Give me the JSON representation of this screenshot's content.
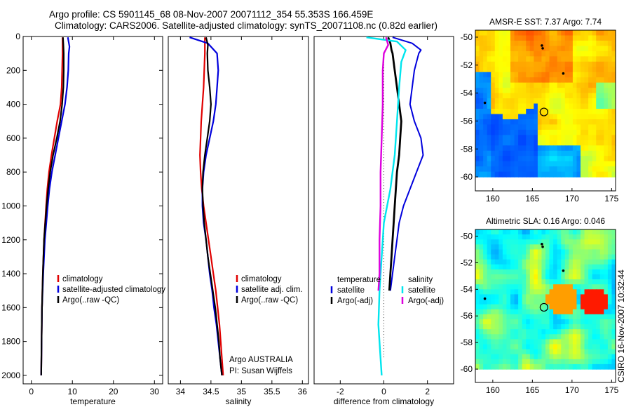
{
  "header": {
    "line1": "Argo profile: CS 5901145_68 08-Nov-2007 20071112_354 55.353S 166.459E",
    "line2": "Climatology: CARS2006. Satellite-adjusted climatology: synTS_20071108.nc (0.82d earlier)"
  },
  "colors": {
    "climatology": "#e00000",
    "satellite": "#0000dd",
    "argo": "#000000",
    "sal_satellite": "#00e5ee",
    "sal_argo": "#dd00dd"
  },
  "footer_text": {
    "institution": "Argo AUSTRALIA",
    "pi": "PI: Susan Wijffels",
    "credit": "CSIRO 16-Nov-2007 10:32:44"
  },
  "chart_data": [
    {
      "id": "temperature",
      "type": "line",
      "xlabel": "temperature",
      "ylabel": "",
      "xlim": [
        -2,
        32
      ],
      "ylim": [
        2050,
        0
      ],
      "xticks": [
        0,
        10,
        20,
        30
      ],
      "yticks": [
        0,
        200,
        400,
        600,
        800,
        1000,
        1200,
        1400,
        1600,
        1800,
        2000
      ],
      "legend_position": "lower-right",
      "legend": [
        "climatology",
        "satellite-adjusted climatology",
        "Argo(..raw -QC)"
      ],
      "series": [
        {
          "name": "climatology",
          "color": "#e00000",
          "depth": [
            5,
            100,
            200,
            300,
            400,
            500,
            600,
            700,
            800,
            900,
            1000,
            1200,
            1400,
            1600,
            1800,
            2000
          ],
          "values": [
            7.6,
            7.6,
            7.5,
            7.4,
            7.1,
            6.3,
            5.6,
            4.9,
            4.3,
            3.9,
            3.6,
            3.1,
            2.8,
            2.6,
            2.5,
            2.4
          ]
        },
        {
          "name": "satellite-adjusted climatology",
          "color": "#0000dd",
          "depth": [
            5,
            60,
            100,
            200,
            300,
            400,
            500,
            600,
            700,
            800,
            900,
            1000,
            1200,
            1400,
            1600,
            1800,
            2000
          ],
          "values": [
            8.9,
            9.3,
            9.1,
            9.0,
            8.7,
            8.2,
            7.4,
            6.6,
            5.8,
            5.0,
            4.4,
            4.0,
            3.3,
            2.9,
            2.6,
            2.5,
            2.4
          ]
        },
        {
          "name": "Argo(..raw -QC)",
          "color": "#000000",
          "depth": [
            5,
            50,
            100,
            200,
            300,
            400,
            500,
            600,
            700,
            800,
            900,
            1000,
            1200,
            1400,
            1600,
            1800,
            2000
          ],
          "values": [
            7.7,
            7.8,
            7.9,
            7.9,
            7.8,
            7.5,
            7.0,
            6.2,
            5.3,
            4.6,
            4.1,
            3.7,
            3.1,
            2.8,
            2.6,
            2.5,
            2.4
          ]
        }
      ]
    },
    {
      "id": "salinity",
      "type": "line",
      "xlabel": "salinity",
      "ylabel": "",
      "xlim": [
        33.8,
        36.1
      ],
      "ylim": [
        2050,
        0
      ],
      "xticks": [
        34,
        34.5,
        35,
        35.5,
        36
      ],
      "xticklabels": [
        "34",
        "34.5",
        "35",
        "35.5",
        "36"
      ],
      "legend_position": "lower-right",
      "legend": [
        "climatology",
        "satellite adj. clim.",
        "Argo(..raw -QC)"
      ],
      "series": [
        {
          "name": "climatology",
          "color": "#e00000",
          "depth": [
            5,
            100,
            200,
            300,
            400,
            500,
            600,
            700,
            800,
            900,
            1000,
            1100,
            1200,
            1300,
            1400,
            1500,
            1600,
            1700,
            1800,
            1900,
            2000
          ],
          "values": [
            34.4,
            34.4,
            34.39,
            34.38,
            34.36,
            34.34,
            34.33,
            34.32,
            34.33,
            34.35,
            34.38,
            34.42,
            34.46,
            34.5,
            34.54,
            34.58,
            34.61,
            34.64,
            34.66,
            34.68,
            34.7
          ]
        },
        {
          "name": "satellite adj. clim.",
          "color": "#0000dd",
          "depth": [
            5,
            40,
            100,
            200,
            300,
            400,
            500,
            600,
            700,
            800,
            900,
            1000,
            1100,
            1200,
            1300,
            1400,
            1500,
            1600,
            1700,
            1800,
            1900,
            2000
          ],
          "values": [
            34.15,
            34.45,
            34.6,
            34.62,
            34.6,
            34.58,
            34.54,
            34.48,
            34.42,
            34.38,
            34.36,
            34.36,
            34.38,
            34.42,
            34.45,
            34.48,
            34.52,
            34.55,
            34.59,
            34.62,
            34.65,
            34.68
          ]
        },
        {
          "name": "Argo(..raw -QC)",
          "color": "#000000",
          "depth": [
            5,
            50,
            100,
            200,
            300,
            400,
            500,
            600,
            700,
            800,
            900,
            1000,
            1100,
            1200,
            1300,
            1400,
            1500,
            1600,
            1700,
            1800,
            1900,
            2000
          ],
          "values": [
            34.42,
            34.45,
            34.44,
            34.45,
            34.48,
            34.5,
            34.48,
            34.44,
            34.4,
            34.37,
            34.36,
            34.37,
            34.39,
            34.42,
            34.45,
            34.49,
            34.53,
            34.57,
            34.6,
            34.63,
            34.65,
            34.68
          ]
        }
      ]
    },
    {
      "id": "difference",
      "type": "line",
      "xlabel": "difference from climatology",
      "ylabel": "",
      "xlim": [
        -3.2,
        3.2
      ],
      "ylim": [
        2050,
        0
      ],
      "xticks": [
        -2,
        0,
        2
      ],
      "legend_position": "lower-center",
      "legend_groups": [
        {
          "title": "temperature",
          "entries": [
            "satellite",
            "Argo(-adj)"
          ]
        },
        {
          "title": "salinity",
          "entries": [
            "satellite",
            "Argo(-adj)"
          ]
        }
      ],
      "series": [
        {
          "name": "temperature satellite",
          "color": "#0000dd",
          "depth": [
            5,
            40,
            80,
            100,
            150,
            200,
            300,
            400,
            500,
            600,
            700,
            800,
            900,
            1000,
            1100,
            1200,
            1300,
            1400,
            1500
          ],
          "values": [
            0.4,
            1.3,
            1.7,
            1.6,
            1.5,
            1.4,
            1.3,
            1.2,
            1.4,
            1.7,
            1.8,
            1.5,
            1.2,
            0.9,
            0.7,
            0.6,
            0.5,
            0.4,
            0.3
          ]
        },
        {
          "name": "temperature Argo(-adj)",
          "color": "#000000",
          "depth": [
            5,
            40,
            80,
            100,
            200,
            300,
            400,
            500,
            600,
            700,
            800,
            900,
            1000,
            1100,
            1200,
            1300,
            1400,
            1500
          ],
          "values": [
            0.2,
            0.3,
            0.35,
            0.4,
            0.5,
            0.6,
            0.7,
            0.8,
            0.75,
            0.7,
            0.6,
            0.55,
            0.5,
            0.45,
            0.4,
            0.35,
            0.3,
            0.25
          ]
        },
        {
          "name": "salinity satellite",
          "color": "#00e5ee",
          "depth": [
            5,
            30,
            80,
            150,
            300,
            500,
            700,
            900,
            1100,
            1300,
            1500,
            1700,
            1900,
            2000
          ],
          "values": [
            -0.8,
            0.6,
            1.0,
            0.8,
            0.7,
            0.6,
            0.5,
            0.3,
            0.0,
            -0.1,
            -0.2,
            -0.25,
            -0.15,
            -0.1
          ]
        },
        {
          "name": "salinity Argo(-adj)",
          "color": "#dd00dd",
          "depth": [
            5,
            50,
            100,
            200,
            400,
            600,
            800,
            1000,
            1200,
            1400,
            1500
          ],
          "values": [
            0.1,
            0.2,
            0.0,
            -0.05,
            -0.05,
            -0.1,
            -0.15,
            -0.15,
            -0.2,
            -0.2,
            -0.25
          ]
        }
      ]
    },
    {
      "id": "sst-map",
      "type": "heatmap",
      "title": "AMSR-E SST: 7.37 Argo: 7.74",
      "xlim": [
        157.8,
        175.5
      ],
      "ylim": [
        -61,
        -49.5
      ],
      "xticks": [
        160,
        165,
        170,
        175
      ],
      "yticks": [
        -50,
        -52,
        -54,
        -56,
        -58,
        -60
      ],
      "float_position": {
        "lon": 166.459,
        "lat": -55.353
      }
    },
    {
      "id": "sla-map",
      "type": "heatmap",
      "title": "Altimetric SLA: 0.16 Argo: 0.046",
      "xlim": [
        157.8,
        175.5
      ],
      "ylim": [
        -61,
        -49.5
      ],
      "xticks": [
        160,
        165,
        170,
        175
      ],
      "yticks": [
        -50,
        -52,
        -54,
        -56,
        -58,
        -60
      ],
      "float_position": {
        "lon": 166.459,
        "lat": -55.353
      }
    }
  ]
}
